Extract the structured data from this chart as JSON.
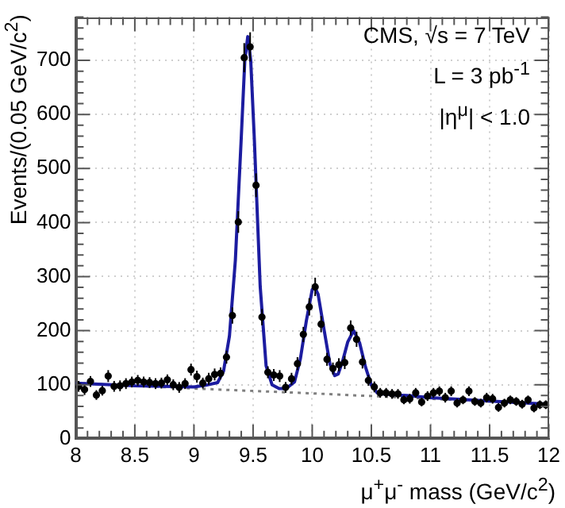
{
  "chart_data": {
    "type": "scatter",
    "xlabel": "μ$^{+}$μ$^{-}$ mass (GeV/c$^{2}$)",
    "ylabel": "Events/(0.05 GeV/c$^{2}$)",
    "annotations": [
      "CMS, √s = 7 TeV",
      "L = 3 pb$^{-1}$",
      "|η$^{μ}$| < 1.0"
    ],
    "xlim": [
      8,
      12
    ],
    "xticks": [
      8,
      8.5,
      9,
      9.5,
      10,
      10.5,
      11,
      11.5,
      12
    ],
    "ylim": [
      0,
      780
    ],
    "yticks": [
      0,
      100,
      200,
      300,
      400,
      500,
      600,
      700
    ],
    "grid": true,
    "legend": false,
    "series": [
      {
        "marker": "circle",
        "color": "#000000",
        "x": [
          8.025,
          8.075,
          8.125,
          8.175,
          8.225,
          8.275,
          8.325,
          8.375,
          8.425,
          8.475,
          8.525,
          8.575,
          8.625,
          8.675,
          8.725,
          8.775,
          8.825,
          8.875,
          8.925,
          8.975,
          9.025,
          9.075,
          9.125,
          9.175,
          9.225,
          9.275,
          9.325,
          9.375,
          9.425,
          9.475,
          9.525,
          9.575,
          9.625,
          9.675,
          9.725,
          9.775,
          9.825,
          9.875,
          9.925,
          9.975,
          10.025,
          10.075,
          10.125,
          10.175,
          10.225,
          10.275,
          10.325,
          10.375,
          10.425,
          10.475,
          10.525,
          10.575,
          10.625,
          10.675,
          10.725,
          10.775,
          10.825,
          10.875,
          10.925,
          10.975,
          11.025,
          11.075,
          11.125,
          11.175,
          11.225,
          11.275,
          11.325,
          11.375,
          11.425,
          11.475,
          11.525,
          11.575,
          11.625,
          11.675,
          11.725,
          11.775,
          11.825,
          11.875,
          11.925,
          11.975
        ],
        "values": [
          97,
          91,
          106,
          81,
          89,
          116,
          97,
          98,
          102,
          105,
          108,
          105,
          104,
          102,
          103,
          109,
          100,
          95,
          102,
          128,
          115,
          103,
          111,
          119,
          121,
          151,
          228,
          401,
          705,
          725,
          469,
          225,
          123,
          118,
          116,
          95,
          111,
          139,
          193,
          244,
          281,
          212,
          147,
          130,
          137,
          141,
          205,
          184,
          142,
          108,
          96,
          85,
          85,
          83,
          83,
          72,
          74,
          85,
          68,
          79,
          85,
          88,
          76,
          88,
          66,
          72,
          88,
          69,
          66,
          76,
          74,
          58,
          66,
          72,
          69,
          64,
          72,
          57,
          63,
          63
        ],
        "errors": [
          10,
          10,
          10,
          9,
          9,
          11,
          10,
          10,
          10,
          10,
          10,
          10,
          10,
          10,
          10,
          10,
          10,
          10,
          10,
          11,
          11,
          10,
          11,
          11,
          11,
          12,
          15,
          20,
          27,
          27,
          22,
          15,
          11,
          11,
          11,
          10,
          11,
          12,
          14,
          16,
          17,
          15,
          12,
          11,
          12,
          12,
          14,
          14,
          12,
          10,
          10,
          9,
          9,
          9,
          9,
          8,
          9,
          9,
          8,
          9,
          9,
          9,
          9,
          9,
          8,
          8,
          9,
          8,
          8,
          9,
          9,
          8,
          8,
          8,
          8,
          8,
          8,
          8,
          8,
          8
        ]
      },
      {
        "type": "line",
        "marker": "none",
        "line_style": "solid",
        "color": "#1c1ca0",
        "x": [
          8,
          8.5,
          9,
          9.1,
          9.2,
          9.25,
          9.3,
          9.35,
          9.4,
          9.43,
          9.455,
          9.48,
          9.51,
          9.56,
          9.61,
          9.66,
          9.72,
          9.78,
          9.85,
          9.9,
          9.95,
          10,
          10.02,
          10.05,
          10.1,
          10.15,
          10.19,
          10.22,
          10.26,
          10.3,
          10.35,
          10.4,
          10.45,
          10.5,
          10.55,
          10.6,
          10.8,
          11,
          11.5,
          12
        ],
        "values": [
          103,
          98,
          96,
          99,
          104,
          125,
          190,
          330,
          557,
          700,
          744,
          700,
          557,
          282,
          135,
          100,
          93,
          93,
          105,
          148,
          218,
          276,
          281,
          267,
          202,
          138,
          117,
          120,
          146,
          179,
          200,
          178,
          133,
          99,
          85,
          83,
          80,
          76,
          70,
          64
        ]
      },
      {
        "type": "line",
        "marker": "none",
        "line_style": "dotted",
        "color": "#808080",
        "x": [
          8,
          9,
          10,
          11,
          12
        ],
        "values": [
          103,
          93,
          84,
          74,
          64
        ]
      }
    ]
  }
}
